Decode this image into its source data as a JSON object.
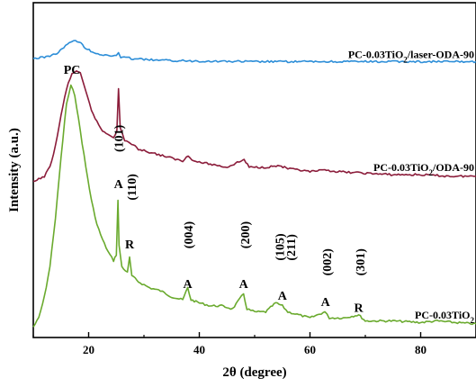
{
  "chart_data": {
    "type": "line",
    "xlabel": "2θ (degree)",
    "ylabel": "Intensity (a.u.)",
    "xlim": [
      10,
      90
    ],
    "xticks": [
      20,
      40,
      60,
      80
    ],
    "yticks_shown": false,
    "grid": false,
    "series": [
      {
        "name": "PC-0.03TiO₂",
        "label_parts": [
          "PC-0.03TiO",
          "2",
          ""
        ],
        "color": "#6aaa2e",
        "points": [
          [
            10,
            0.02
          ],
          [
            11,
            0.05
          ],
          [
            12,
            0.12
          ],
          [
            13,
            0.22
          ],
          [
            14,
            0.38
          ],
          [
            15,
            0.58
          ],
          [
            16,
            0.76
          ],
          [
            16.8,
            0.82
          ],
          [
            17.5,
            0.79
          ],
          [
            18.5,
            0.67
          ],
          [
            19.5,
            0.55
          ],
          [
            20.5,
            0.44
          ],
          [
            21.5,
            0.36
          ],
          [
            22.5,
            0.31
          ],
          [
            23.5,
            0.27
          ],
          [
            24.5,
            0.24
          ],
          [
            25.0,
            0.26
          ],
          [
            25.3,
            0.44
          ],
          [
            25.5,
            0.29
          ],
          [
            26.0,
            0.22
          ],
          [
            27.0,
            0.2
          ],
          [
            27.4,
            0.25
          ],
          [
            27.8,
            0.19
          ],
          [
            29,
            0.17
          ],
          [
            31,
            0.15
          ],
          [
            33,
            0.14
          ],
          [
            35,
            0.12
          ],
          [
            37,
            0.11
          ],
          [
            37.9,
            0.15
          ],
          [
            38.5,
            0.11
          ],
          [
            40,
            0.1
          ],
          [
            42,
            0.09
          ],
          [
            44,
            0.09
          ],
          [
            46,
            0.08
          ],
          [
            48.0,
            0.13
          ],
          [
            48.6,
            0.08
          ],
          [
            50,
            0.07
          ],
          [
            52,
            0.07
          ],
          [
            53.8,
            0.1
          ],
          [
            55.0,
            0.09
          ],
          [
            56,
            0.07
          ],
          [
            58,
            0.06
          ],
          [
            60,
            0.05
          ],
          [
            62.7,
            0.07
          ],
          [
            63.5,
            0.05
          ],
          [
            66,
            0.05
          ],
          [
            68.8,
            0.06
          ],
          [
            70,
            0.04
          ],
          [
            75,
            0.04
          ],
          [
            80,
            0.035
          ],
          [
            83,
            0.04
          ],
          [
            86,
            0.035
          ],
          [
            90,
            0.03
          ]
        ]
      },
      {
        "name": "PC-0.03TiO₂/ODA-90",
        "label_parts": [
          "PC-0.03TiO",
          "2",
          "/ODA-90"
        ],
        "color": "#8b1c3a",
        "points": [
          [
            10,
            0.5
          ],
          [
            11,
            0.51
          ],
          [
            12,
            0.52
          ],
          [
            13,
            0.55
          ],
          [
            14,
            0.62
          ],
          [
            15,
            0.72
          ],
          [
            16,
            0.81
          ],
          [
            17,
            0.86
          ],
          [
            17.8,
            0.87
          ],
          [
            18.5,
            0.86
          ],
          [
            19.5,
            0.8
          ],
          [
            20.5,
            0.74
          ],
          [
            21.5,
            0.7
          ],
          [
            22.5,
            0.67
          ],
          [
            23.5,
            0.66
          ],
          [
            24.5,
            0.65
          ],
          [
            25.1,
            0.67
          ],
          [
            25.4,
            0.81
          ],
          [
            25.7,
            0.68
          ],
          [
            26.5,
            0.64
          ],
          [
            27.5,
            0.63
          ],
          [
            29,
            0.61
          ],
          [
            31,
            0.6
          ],
          [
            33,
            0.59
          ],
          [
            35,
            0.58
          ],
          [
            37,
            0.57
          ],
          [
            38.0,
            0.59
          ],
          [
            39,
            0.57
          ],
          [
            42,
            0.56
          ],
          [
            45,
            0.55
          ],
          [
            48.1,
            0.575
          ],
          [
            49,
            0.55
          ],
          [
            52,
            0.55
          ],
          [
            54.5,
            0.555
          ],
          [
            56,
            0.545
          ],
          [
            58,
            0.54
          ],
          [
            60,
            0.535
          ],
          [
            63,
            0.54
          ],
          [
            65,
            0.535
          ],
          [
            70,
            0.53
          ],
          [
            75,
            0.525
          ],
          [
            80,
            0.525
          ],
          [
            85,
            0.52
          ],
          [
            90,
            0.52
          ]
        ]
      },
      {
        "name": "PC-0.03TiO₂/laser-ODA-90",
        "label_parts": [
          "PC-0.03TiO",
          "2",
          "/laser-ODA-90"
        ],
        "color": "#2d8ed8",
        "points": [
          [
            10,
            0.91
          ],
          [
            12,
            0.915
          ],
          [
            14,
            0.925
          ],
          [
            15.5,
            0.945
          ],
          [
            16.5,
            0.965
          ],
          [
            17.3,
            0.97
          ],
          [
            18.3,
            0.965
          ],
          [
            19.5,
            0.945
          ],
          [
            21,
            0.93
          ],
          [
            23,
            0.92
          ],
          [
            25.0,
            0.92
          ],
          [
            25.4,
            0.93
          ],
          [
            25.8,
            0.915
          ],
          [
            28,
            0.91
          ],
          [
            32,
            0.905
          ],
          [
            36,
            0.903
          ],
          [
            40,
            0.902
          ],
          [
            45,
            0.901
          ],
          [
            50,
            0.9
          ],
          [
            55,
            0.9
          ],
          [
            60,
            0.9
          ],
          [
            70,
            0.9
          ],
          [
            80,
            0.9
          ],
          [
            90,
            0.9
          ]
        ]
      }
    ],
    "annotations": [
      {
        "text": "PC",
        "x": 17.0,
        "y": 0.86,
        "rotate": false
      },
      {
        "text": "(101)",
        "x": 25.4,
        "y": 0.6,
        "rotate": true
      },
      {
        "text": "A",
        "x": 25.4,
        "y": 0.48,
        "rotate": false
      },
      {
        "text": "(110)",
        "x": 27.7,
        "y": 0.44,
        "rotate": true
      },
      {
        "text": "R",
        "x": 27.4,
        "y": 0.28,
        "rotate": false
      },
      {
        "text": "(004)",
        "x": 38.0,
        "y": 0.28,
        "rotate": true
      },
      {
        "text": "A",
        "x": 37.9,
        "y": 0.15,
        "rotate": false
      },
      {
        "text": "(200)",
        "x": 48.2,
        "y": 0.28,
        "rotate": true
      },
      {
        "text": "A",
        "x": 48.0,
        "y": 0.15,
        "rotate": false
      },
      {
        "text": "(105)",
        "x": 54.5,
        "y": 0.24,
        "rotate": true
      },
      {
        "text": "(211)",
        "x": 56.5,
        "y": 0.24,
        "rotate": true
      },
      {
        "text": "A",
        "x": 55.0,
        "y": 0.11,
        "rotate": false
      },
      {
        "text": "(002)",
        "x": 63.0,
        "y": 0.19,
        "rotate": true
      },
      {
        "text": "A",
        "x": 62.8,
        "y": 0.09,
        "rotate": false
      },
      {
        "text": "(301)",
        "x": 69.0,
        "y": 0.19,
        "rotate": true
      },
      {
        "text": "R",
        "x": 68.8,
        "y": 0.07,
        "rotate": false
      }
    ]
  }
}
